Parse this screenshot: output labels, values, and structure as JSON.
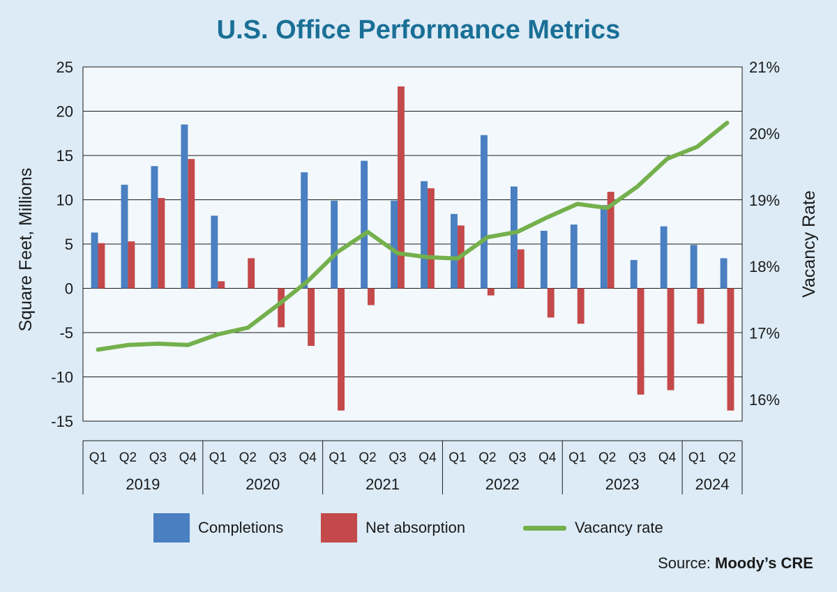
{
  "chart_data": {
    "type": "bar",
    "title": "U.S. Office Performance Metrics",
    "ylabel": "Square Feet, Millions",
    "y2label": "Vacancy Rate",
    "ylim": [
      -15,
      25
    ],
    "yticks": [
      25,
      20,
      15,
      10,
      5,
      0,
      -5,
      -10,
      -15
    ],
    "y2lim": [
      15.7,
      21.0
    ],
    "y2ticks": [
      "21%",
      "20%",
      "19%",
      "18%",
      "17%",
      "16%"
    ],
    "y2tick_values": [
      21,
      20,
      19,
      18,
      17,
      16
    ],
    "quarters": [
      "Q1",
      "Q2",
      "Q3",
      "Q4",
      "Q1",
      "Q2",
      "Q3",
      "Q4",
      "Q1",
      "Q2",
      "Q3",
      "Q4",
      "Q1",
      "Q2",
      "Q3",
      "Q4",
      "Q1",
      "Q2",
      "Q3",
      "Q4",
      "Q1",
      "Q2"
    ],
    "years": [
      {
        "label": "2019",
        "count": 4
      },
      {
        "label": "2020",
        "count": 4
      },
      {
        "label": "2021",
        "count": 4
      },
      {
        "label": "2022",
        "count": 4
      },
      {
        "label": "2023",
        "count": 4
      },
      {
        "label": "2024",
        "count": 2
      }
    ],
    "series": [
      {
        "name": "Completions",
        "kind": "bar",
        "color": "#4a7fc1",
        "values": [
          6.3,
          11.7,
          13.8,
          18.5,
          8.2,
          null,
          null,
          13.1,
          9.9,
          14.4,
          9.9,
          12.1,
          8.4,
          17.3,
          11.5,
          6.5,
          7.2,
          9.4,
          3.2,
          7.0,
          4.9,
          3.4
        ]
      },
      {
        "name": "Net absorption",
        "kind": "bar",
        "color": "#c4494a",
        "values": [
          5.1,
          5.3,
          10.2,
          14.6,
          0.8,
          3.4,
          -4.4,
          -6.5,
          -13.8,
          -1.9,
          22.8,
          11.3,
          7.1,
          -0.8,
          4.4,
          -3.3,
          -4.0,
          10.9,
          -12.0,
          -11.5,
          -4.0,
          -13.8
        ]
      },
      {
        "name": "Vacancy rate",
        "kind": "line",
        "axis": "right",
        "color": "#74b04c",
        "values": [
          16.75,
          16.82,
          16.84,
          16.82,
          16.98,
          17.08,
          17.42,
          17.78,
          18.22,
          18.52,
          18.2,
          18.14,
          18.12,
          18.44,
          18.52,
          18.74,
          18.94,
          18.88,
          19.2,
          19.62,
          19.8,
          20.16
        ]
      }
    ],
    "legend": "bottom",
    "grid": "horizontal"
  },
  "legend_labels": {
    "completions": "Completions",
    "net_absorption": "Net absorption",
    "vacancy_rate": "Vacancy rate"
  },
  "source": {
    "prefix": "Source: ",
    "name": "Moody’s CRE"
  }
}
